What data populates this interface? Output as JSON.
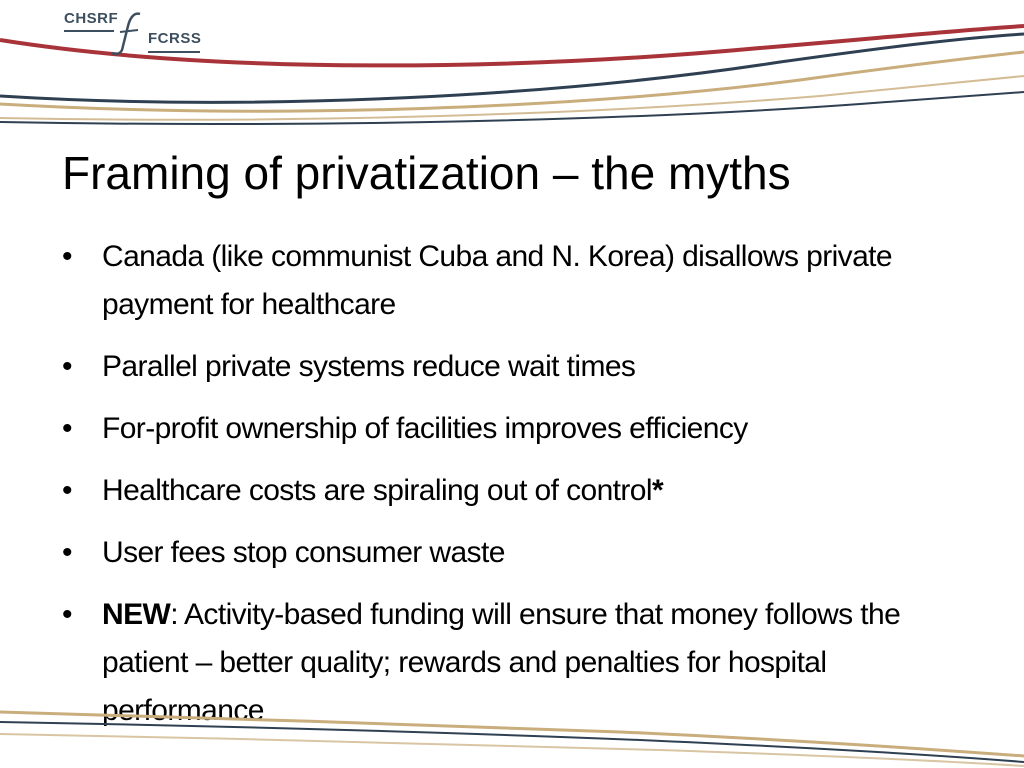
{
  "logo": {
    "left_text": "CHSRF",
    "right_text": "FCRSS"
  },
  "title": "Framing of privatization – the myths",
  "bullet_glyph": "•",
  "bullets": [
    {
      "text": "Canada (like communist Cuba and N. Korea) disallows private payment for healthcare"
    },
    {
      "text": "Parallel private systems reduce wait times"
    },
    {
      "text": "For-profit ownership of facilities improves efficiency"
    },
    {
      "text": "Healthcare costs are spiraling out of control",
      "suffix": "*"
    },
    {
      "text": "User fees stop consumer waste"
    },
    {
      "prefix": "NEW",
      "text": ": Activity-based funding will ensure that money follows the patient – better quality; rewards and penalties for hospital performance"
    }
  ],
  "colors": {
    "navy": "#2e4052",
    "red": "#a8343a",
    "tan": "#c9ad7c",
    "text": "#000000"
  }
}
